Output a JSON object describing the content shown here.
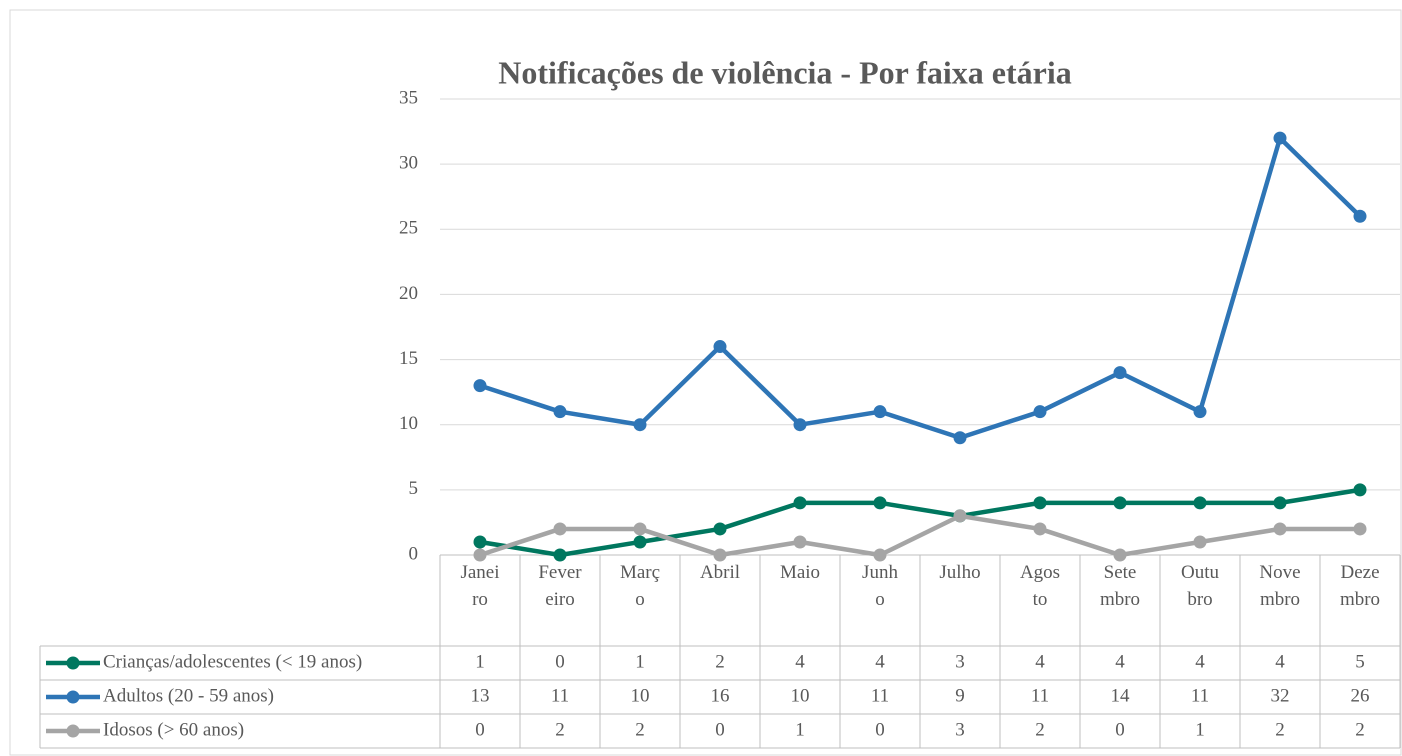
{
  "chart_data": {
    "type": "line",
    "title": "Notificações de violência -  Por faixa etária",
    "categories": [
      "Janeiro",
      "Fevereiro",
      "Março",
      "Abril",
      "Maio",
      "Junho",
      "Julho",
      "Agosto",
      "Setembro",
      "Outubro",
      "Novembro",
      "Dezembro"
    ],
    "series": [
      {
        "name": "Crianças/adolescentes (< 19 anos)",
        "color": "#00775f",
        "values": [
          1,
          0,
          1,
          2,
          4,
          4,
          3,
          4,
          4,
          4,
          4,
          5
        ]
      },
      {
        "name": "Adultos (20 - 59 anos)",
        "color": "#2e75b6",
        "values": [
          13,
          11,
          10,
          16,
          10,
          11,
          9,
          11,
          14,
          11,
          32,
          26
        ]
      },
      {
        "name": "Idosos (> 60 anos)",
        "color": "#a5a5a5",
        "values": [
          0,
          2,
          2,
          0,
          1,
          0,
          3,
          2,
          0,
          1,
          2,
          2
        ]
      }
    ],
    "ylim": [
      0,
      35
    ],
    "yticks": [
      0,
      5,
      10,
      15,
      20,
      25,
      30,
      35
    ],
    "grid": true
  }
}
